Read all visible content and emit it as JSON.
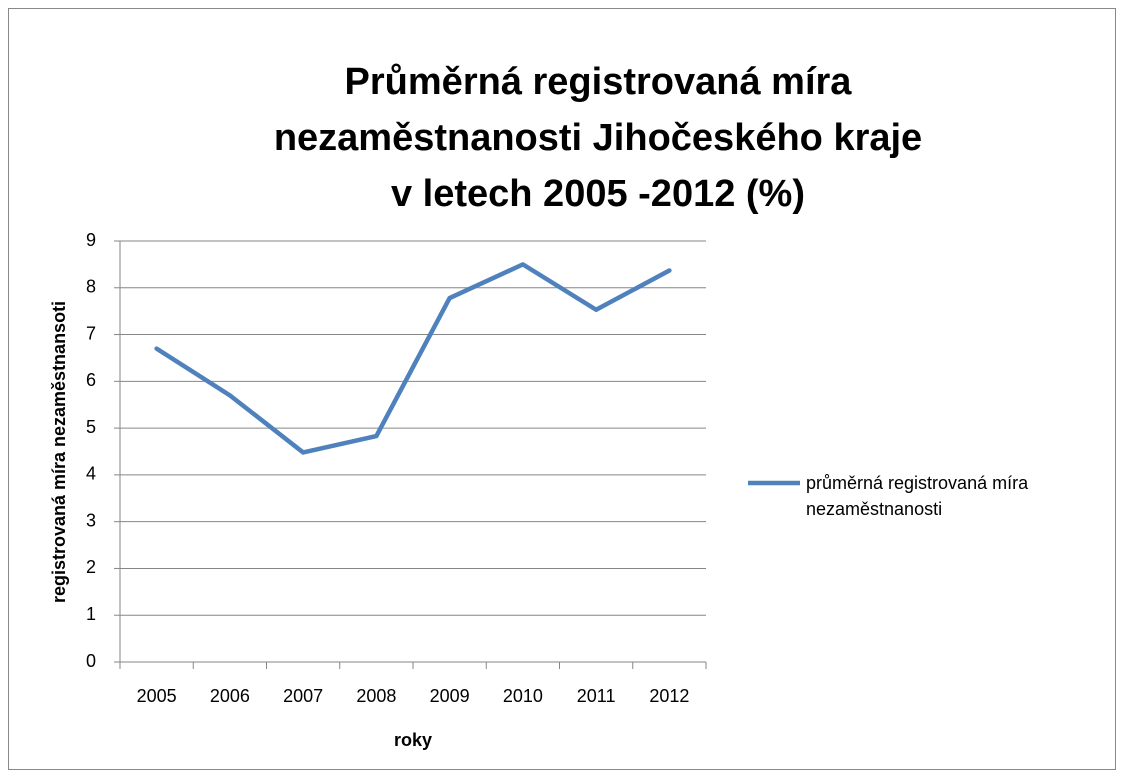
{
  "chart_data": {
    "type": "line",
    "title": [
      "Průměrná registrovaná míra",
      "nezaměstnanosti Jihočeského kraje",
      "v letech 2005 -2012 (%)"
    ],
    "x_label": "roky",
    "y_label": "registrovaná míra nezaměstnansoti",
    "categories": [
      "2005",
      "2006",
      "2007",
      "2008",
      "2009",
      "2010",
      "2011",
      "2012"
    ],
    "series": [
      {
        "name": "průměrná registrovaná míra nezaměstnanosti",
        "color": "#4f81bd",
        "values": [
          6.7,
          5.7,
          4.48,
          4.83,
          7.78,
          8.5,
          7.53,
          8.37
        ]
      }
    ],
    "ylim": [
      0,
      9
    ],
    "yticks": [
      0,
      1,
      2,
      3,
      4,
      5,
      6,
      7,
      8,
      9
    ],
    "grid": true,
    "legend": "right"
  }
}
